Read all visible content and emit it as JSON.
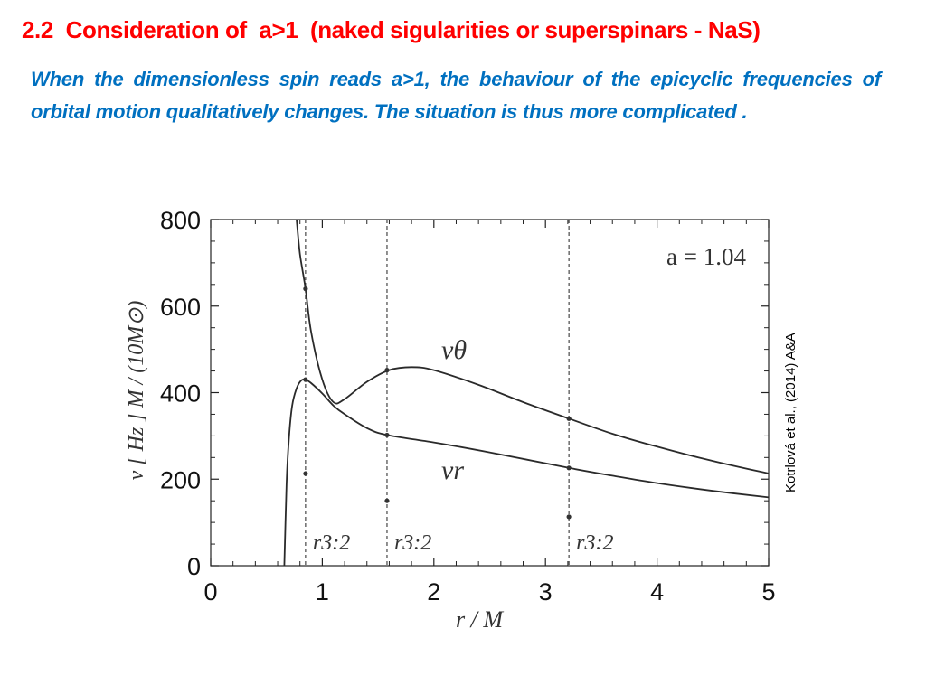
{
  "title": "2.2  Consideration of  a>1  (naked sigularities or superspinars - NaS)",
  "body_text": "When the dimensionless spin reads a>1, the behaviour of the epicyclic frequencies of orbital motion qualitatively changes. The situation is thus more complicated .",
  "credit": "Kotrlová et al., (2014) A&A",
  "colors": {
    "title": "#ff0000",
    "body": "#0070c0"
  },
  "chart_data": {
    "type": "line",
    "xlabel": "r / M",
    "ylabel": "ν [ Hz ] M / (10M⊙)",
    "xlim": [
      0,
      5
    ],
    "ylim": [
      0,
      800
    ],
    "x_ticks": [
      "0",
      "1",
      "2",
      "3",
      "4",
      "5"
    ],
    "y_ticks": [
      "0",
      "200",
      "400",
      "600",
      "800"
    ],
    "annotation": "a = 1.04",
    "series": [
      {
        "name": "νθ",
        "x": [
          0.77,
          0.8,
          0.85,
          0.9,
          1.0,
          1.1,
          1.2,
          1.4,
          1.6,
          1.8,
          2.0,
          2.4,
          2.8,
          3.21,
          3.6,
          4.0,
          4.5,
          5.0
        ],
        "y": [
          800,
          720,
          640,
          540,
          430,
          378,
          385,
          425,
          452,
          459,
          452,
          418,
          378,
          340,
          305,
          275,
          242,
          213
        ]
      },
      {
        "name": "νr",
        "x": [
          0.66,
          0.68,
          0.7,
          0.73,
          0.77,
          0.81,
          0.85,
          0.9,
          1.0,
          1.1,
          1.2,
          1.4,
          1.58,
          2.0,
          2.5,
          3.21,
          3.6,
          4.0,
          4.5,
          5.0
        ],
        "y": [
          0,
          190,
          290,
          370,
          410,
          428,
          430,
          422,
          398,
          370,
          350,
          318,
          302,
          285,
          262,
          226,
          208,
          191,
          173,
          158
        ]
      }
    ],
    "resonances": [
      {
        "label": "r3:2",
        "r": 0.85,
        "points": [
          640,
          430,
          213
        ]
      },
      {
        "label": "r3:2",
        "r": 1.58,
        "points": [
          452,
          302,
          150
        ]
      },
      {
        "label": "r3:2",
        "r": 3.21,
        "points": [
          340,
          226,
          113
        ]
      }
    ],
    "grid": false
  }
}
